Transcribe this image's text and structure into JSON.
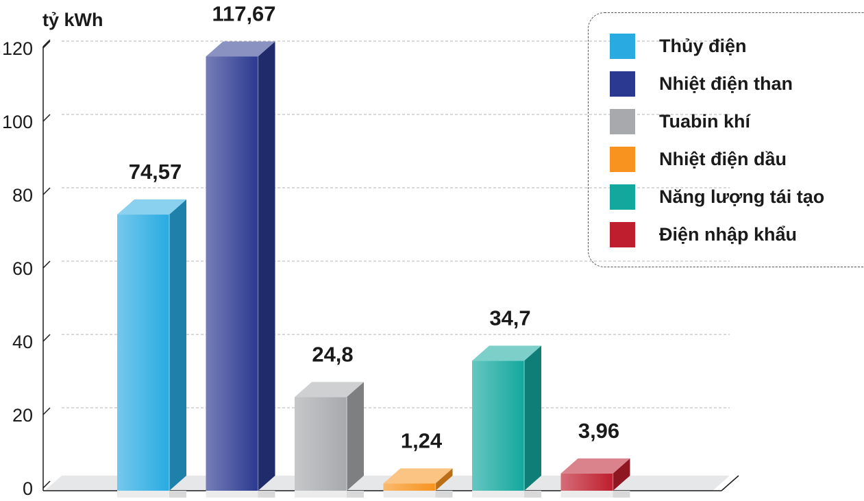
{
  "chart_data": {
    "type": "bar",
    "ylabel": "tỷ kWh",
    "ylim": [
      0,
      120
    ],
    "yticks": [
      0,
      20,
      40,
      60,
      80,
      100,
      120
    ],
    "grid": true,
    "legend_position": "top-right",
    "categories": [
      "Thủy điện",
      "Nhiệt điện than",
      "Tuabin khí",
      "Nhiệt điện dầu",
      "Năng lượng tái tạo",
      "Điện nhập khẩu"
    ],
    "values": [
      74.57,
      117.67,
      24.8,
      1.24,
      34.7,
      3.96
    ],
    "value_labels": [
      "74,57",
      "117,67",
      "24,8",
      "1,24",
      "34,7",
      "3,96"
    ],
    "colors": [
      "#29abe2",
      "#2b3990",
      "#a7a9ac",
      "#f7931e",
      "#13a89e",
      "#be1e2d"
    ]
  }
}
